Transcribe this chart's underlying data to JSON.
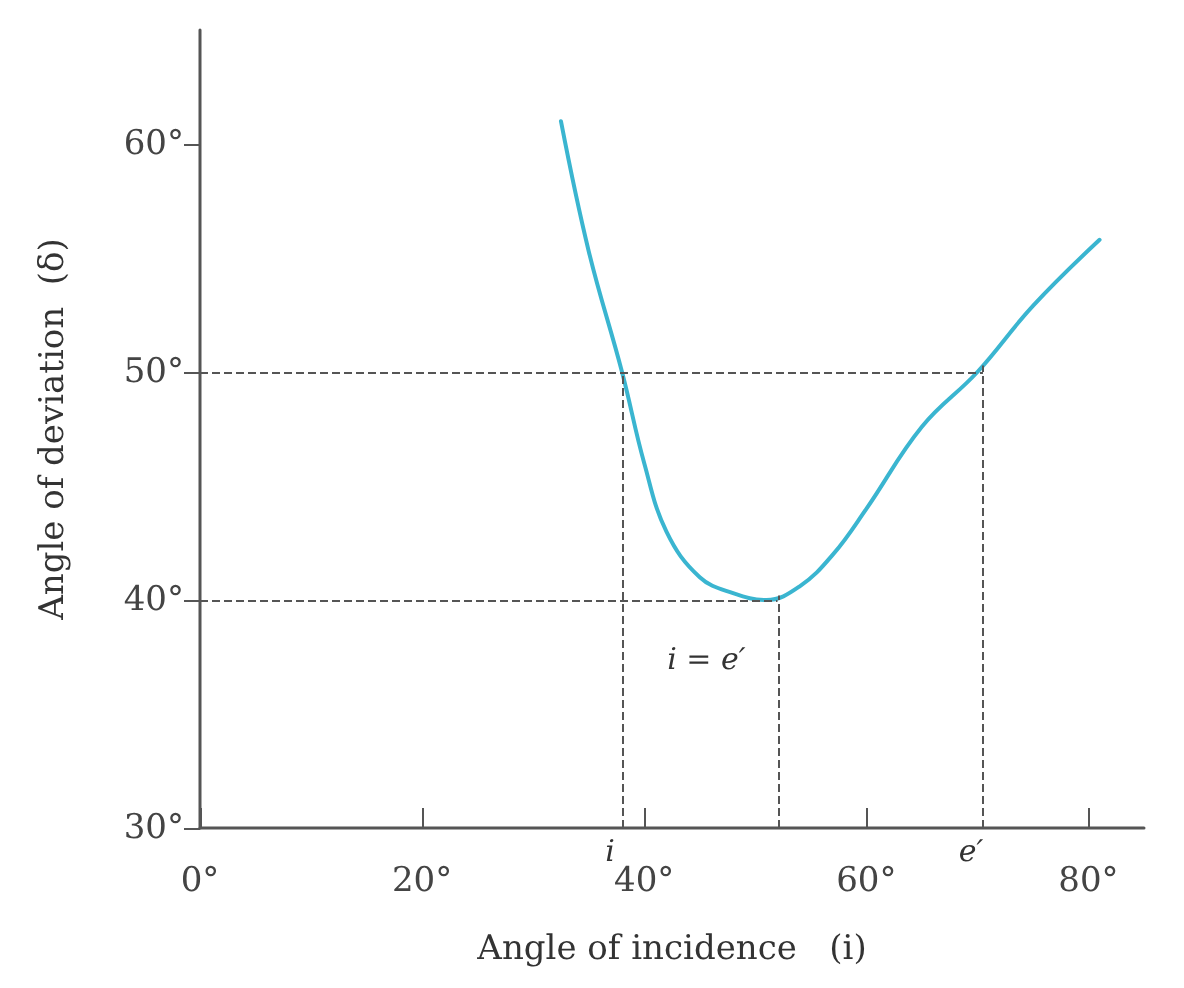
{
  "chart_data": {
    "type": "line",
    "xlabel": "Angle of incidence   (i)",
    "ylabel": "Angle of deviation  (δ)",
    "x": [
      32.5,
      35,
      38,
      40,
      42,
      45,
      48,
      51,
      54,
      57,
      60,
      65,
      70,
      75,
      81
    ],
    "series": [
      {
        "color": "#3ab5d0",
        "values": [
          61,
          55.3,
          50,
          46,
          43,
          41,
          40.3,
          40,
          40.6,
          42,
          44,
          47.6,
          50,
          52.9,
          55.8
        ]
      }
    ],
    "xlim": [
      0,
      85
    ],
    "ylim": [
      30,
      65
    ],
    "xticks": [
      {
        "value": 0,
        "label": "0°"
      },
      {
        "value": 20,
        "label": "20°"
      },
      {
        "value": 40,
        "label": "40°"
      },
      {
        "value": 60,
        "label": "60°"
      },
      {
        "value": 80,
        "label": "80°"
      }
    ],
    "yticks": [
      {
        "value": 30,
        "label": "30°"
      },
      {
        "value": 40,
        "label": "40°"
      },
      {
        "value": 50,
        "label": "50°"
      },
      {
        "value": 60,
        "label": "60°"
      }
    ],
    "ref_lines": [
      {
        "axis": "y",
        "value": 50,
        "label": null,
        "line_style": "dashed"
      },
      {
        "axis": "y",
        "value": 40,
        "label": null,
        "line_style": "dashed"
      },
      {
        "axis": "x",
        "value": 38,
        "label": "i",
        "line_style": "dashed"
      },
      {
        "axis": "x",
        "value": 52,
        "label": null,
        "line_style": "dashed"
      },
      {
        "axis": "x",
        "value": 70.5,
        "label": "e′",
        "line_style": "dashed"
      }
    ],
    "annotations": [
      {
        "text": "i = e′",
        "x": 52,
        "y": 40
      }
    ],
    "grid": false,
    "marker": "none",
    "line_style": "solid"
  }
}
